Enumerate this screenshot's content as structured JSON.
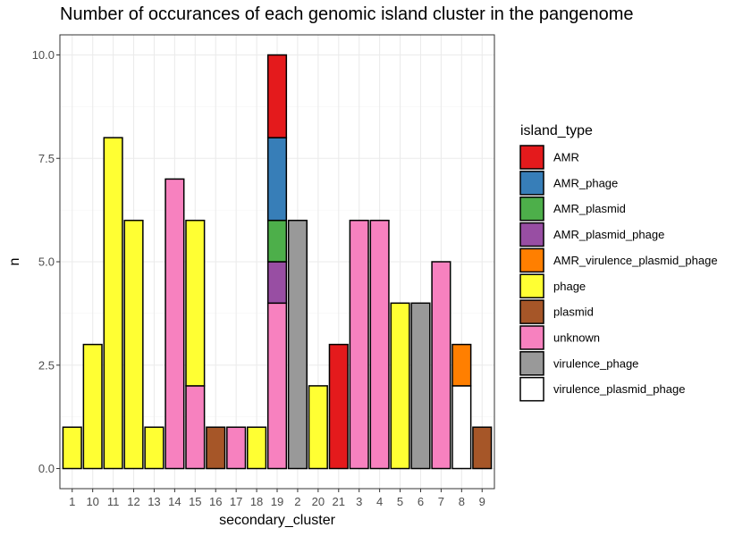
{
  "chart_data": {
    "type": "bar",
    "stacked": true,
    "title": "Number of occurances of each genomic island cluster in the pangenome",
    "xlabel": "secondary_cluster",
    "ylabel": "n",
    "ylim": [
      -0.3,
      10.5
    ],
    "yticks": [
      "0.0",
      "2.5",
      "5.0",
      "7.5",
      "10.0"
    ],
    "ytick_values": [
      0,
      2.5,
      5,
      7.5,
      10
    ],
    "grid": true,
    "legend_position": "right",
    "categories": [
      "1",
      "10",
      "11",
      "12",
      "13",
      "14",
      "15",
      "16",
      "17",
      "18",
      "19",
      "2",
      "20",
      "21",
      "3",
      "4",
      "5",
      "6",
      "7",
      "8",
      "9"
    ],
    "series": [
      {
        "name": "unknown",
        "color": "#F781BF",
        "values": [
          0,
          0,
          0,
          0,
          0,
          7,
          2,
          0,
          1,
          0,
          4,
          0,
          0,
          0,
          6,
          6,
          0,
          0,
          5,
          0,
          0
        ]
      },
      {
        "name": "virulence_plasmid_phage",
        "color": "#FFFFFF",
        "values": [
          0,
          0,
          0,
          0,
          0,
          0,
          0,
          0,
          0,
          0,
          0,
          0,
          0,
          0,
          0,
          0,
          0,
          0,
          0,
          2,
          0
        ]
      },
      {
        "name": "phage",
        "color": "#FFFF33",
        "values": [
          1,
          3,
          8,
          6,
          1,
          0,
          4,
          0,
          0,
          1,
          0,
          0,
          2,
          0,
          0,
          0,
          4,
          0,
          0,
          0,
          0
        ]
      },
      {
        "name": "plasmid",
        "color": "#A65628",
        "values": [
          0,
          0,
          0,
          0,
          0,
          0,
          0,
          1,
          0,
          0,
          0,
          0,
          0,
          0,
          0,
          0,
          0,
          0,
          0,
          0,
          1
        ]
      },
      {
        "name": "virulence_phage",
        "color": "#999999",
        "values": [
          0,
          0,
          0,
          0,
          0,
          0,
          0,
          0,
          0,
          0,
          0,
          6,
          0,
          0,
          0,
          0,
          0,
          4,
          0,
          0,
          0
        ]
      },
      {
        "name": "AMR_plasmid_phage",
        "color": "#984EA3",
        "values": [
          0,
          0,
          0,
          0,
          0,
          0,
          0,
          0,
          0,
          0,
          1,
          0,
          0,
          0,
          0,
          0,
          0,
          0,
          0,
          0,
          0
        ]
      },
      {
        "name": "AMR_plasmid",
        "color": "#4DAF4A",
        "values": [
          0,
          0,
          0,
          0,
          0,
          0,
          0,
          0,
          0,
          0,
          1,
          0,
          0,
          0,
          0,
          0,
          0,
          0,
          0,
          0,
          0
        ]
      },
      {
        "name": "AMR_phage",
        "color": "#377EB8",
        "values": [
          0,
          0,
          0,
          0,
          0,
          0,
          0,
          0,
          0,
          0,
          2,
          0,
          0,
          0,
          0,
          0,
          0,
          0,
          0,
          0,
          0
        ]
      },
      {
        "name": "AMR",
        "color": "#E41A1C",
        "values": [
          0,
          0,
          0,
          0,
          0,
          0,
          0,
          0,
          0,
          0,
          2,
          0,
          0,
          3,
          0,
          0,
          0,
          0,
          0,
          0,
          0
        ]
      },
      {
        "name": "AMR_virulence_plasmid_phage",
        "color": "#FF7F00",
        "values": [
          0,
          0,
          0,
          0,
          0,
          0,
          0,
          0,
          0,
          0,
          0,
          0,
          0,
          0,
          0,
          0,
          0,
          0,
          0,
          1,
          0
        ]
      }
    ],
    "legend": {
      "title": "island_type",
      "entries": [
        {
          "name": "AMR",
          "color": "#E41A1C"
        },
        {
          "name": "AMR_phage",
          "color": "#377EB8"
        },
        {
          "name": "AMR_plasmid",
          "color": "#4DAF4A"
        },
        {
          "name": "AMR_plasmid_phage",
          "color": "#984EA3"
        },
        {
          "name": "AMR_virulence_plasmid_phage",
          "color": "#FF7F00"
        },
        {
          "name": "phage",
          "color": "#FFFF33"
        },
        {
          "name": "plasmid",
          "color": "#A65628"
        },
        {
          "name": "unknown",
          "color": "#F781BF"
        },
        {
          "name": "virulence_phage",
          "color": "#999999"
        },
        {
          "name": "virulence_plasmid_phage",
          "color": "#FFFFFF"
        }
      ]
    }
  }
}
